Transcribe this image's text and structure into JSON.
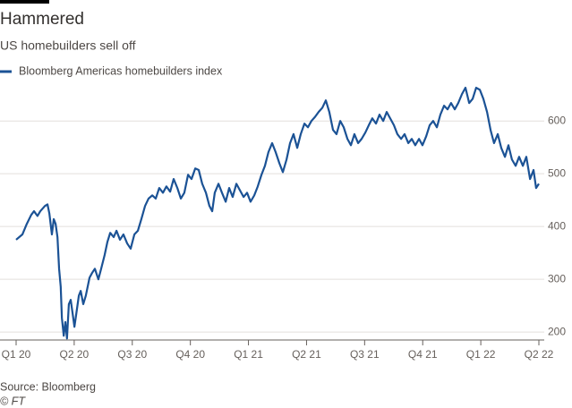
{
  "chart_data": {
    "type": "line",
    "title": "Hammered",
    "subtitle": "US homebuilders sell off",
    "source": "Source: Bloomberg",
    "credit": "© FT",
    "x": [
      2020.0,
      2020.027,
      2020.046,
      2020.065,
      2020.077,
      2020.092,
      2020.104,
      2020.124,
      2020.135,
      2020.143,
      2020.154,
      2020.162,
      2020.17,
      2020.178,
      2020.185,
      2020.192,
      2020.197,
      2020.205,
      2020.212,
      2020.219,
      2020.227,
      2020.235,
      2020.243,
      2020.251,
      2020.262,
      2020.27,
      2020.278,
      2020.289,
      2020.3,
      2020.316,
      2020.327,
      2020.339,
      2020.354,
      2020.366,
      2020.381,
      2020.393,
      2020.405,
      2020.42,
      2020.432,
      2020.447,
      2020.462,
      2020.478,
      2020.493,
      2020.509,
      2020.524,
      2020.539,
      2020.555,
      2020.57,
      2020.586,
      2020.601,
      2020.616,
      2020.632,
      2020.647,
      2020.663,
      2020.678,
      2020.694,
      2020.709,
      2020.724,
      2020.74,
      2020.755,
      2020.771,
      2020.786,
      2020.801,
      2020.817,
      2020.832,
      2020.844,
      2020.855,
      2020.871,
      2020.886,
      2020.902,
      2020.917,
      2020.932,
      2020.948,
      2020.963,
      2020.979,
      2020.994,
      2021.009,
      2021.025,
      2021.04,
      2021.056,
      2021.071,
      2021.086,
      2021.102,
      2021.117,
      2021.133,
      2021.148,
      2021.164,
      2021.179,
      2021.194,
      2021.21,
      2021.225,
      2021.241,
      2021.256,
      2021.271,
      2021.287,
      2021.302,
      2021.318,
      2021.333,
      2021.348,
      2021.364,
      2021.379,
      2021.395,
      2021.41,
      2021.426,
      2021.441,
      2021.456,
      2021.472,
      2021.487,
      2021.503,
      2021.518,
      2021.533,
      2021.549,
      2021.564,
      2021.58,
      2021.595,
      2021.61,
      2021.626,
      2021.641,
      2021.657,
      2021.672,
      2021.688,
      2021.703,
      2021.718,
      2021.734,
      2021.749,
      2021.765,
      2021.78,
      2021.795,
      2021.811,
      2021.826,
      2021.842,
      2021.857,
      2021.872,
      2021.888,
      2021.903,
      2021.919,
      2021.934,
      2021.95,
      2021.965,
      2021.98,
      2021.996,
      2022.011,
      2022.027,
      2022.042,
      2022.057,
      2022.073,
      2022.088,
      2022.104,
      2022.119,
      2022.134,
      2022.15,
      2022.165,
      2022.181,
      2022.196,
      2022.212,
      2022.227,
      2022.238,
      2022.25
    ],
    "series": [
      {
        "name": "Bloomberg Americas homebuilders index",
        "color": "#1b5295",
        "values": [
          375,
          385,
          405,
          422,
          429,
          420,
          429,
          439,
          442,
          425,
          385,
          414,
          405,
          380,
          320,
          286,
          227,
          193,
          219,
          188,
          253,
          261,
          236,
          210,
          244,
          269,
          278,
          253,
          269,
          303,
          312,
          320,
          300,
          320,
          346,
          371,
          388,
          380,
          392,
          375,
          385,
          368,
          358,
          385,
          392,
          414,
          439,
          453,
          459,
          453,
          473,
          464,
          476,
          466,
          490,
          473,
          453,
          464,
          498,
          490,
          510,
          507,
          481,
          464,
          439,
          429,
          464,
          481,
          464,
          447,
          473,
          456,
          481,
          469,
          456,
          464,
          447,
          459,
          476,
          498,
          515,
          541,
          558,
          541,
          520,
          503,
          527,
          558,
          575,
          549,
          575,
          595,
          588,
          600,
          608,
          617,
          625,
          639,
          617,
          583,
          575,
          600,
          588,
          566,
          554,
          575,
          558,
          566,
          578,
          592,
          605,
          595,
          612,
          600,
          617,
          605,
          592,
          575,
          566,
          575,
          558,
          566,
          554,
          566,
          554,
          571,
          592,
          600,
          588,
          612,
          629,
          622,
          634,
          622,
          634,
          651,
          663,
          634,
          642,
          663,
          659,
          642,
          617,
          583,
          558,
          575,
          549,
          532,
          554,
          527,
          515,
          532,
          515,
          532,
          490,
          507,
          473,
          481
        ]
      }
    ],
    "xlim": [
      2020.0,
      2022.25
    ],
    "xticks": [
      {
        "value": 2020.0,
        "label": "Q1 20"
      },
      {
        "value": 2020.25,
        "label": "Q2 20"
      },
      {
        "value": 2020.5,
        "label": "Q3 20"
      },
      {
        "value": 2020.75,
        "label": "Q4 20"
      },
      {
        "value": 2021.0,
        "label": "Q1 21"
      },
      {
        "value": 2021.25,
        "label": "Q2 21"
      },
      {
        "value": 2021.5,
        "label": "Q3 21"
      },
      {
        "value": 2021.75,
        "label": "Q4 21"
      },
      {
        "value": 2022.0,
        "label": "Q1 22"
      },
      {
        "value": 2022.25,
        "label": "Q2 22"
      }
    ],
    "ylim": [
      185,
      680
    ],
    "yticks": [
      200,
      300,
      400,
      500,
      600
    ],
    "grid": true
  }
}
